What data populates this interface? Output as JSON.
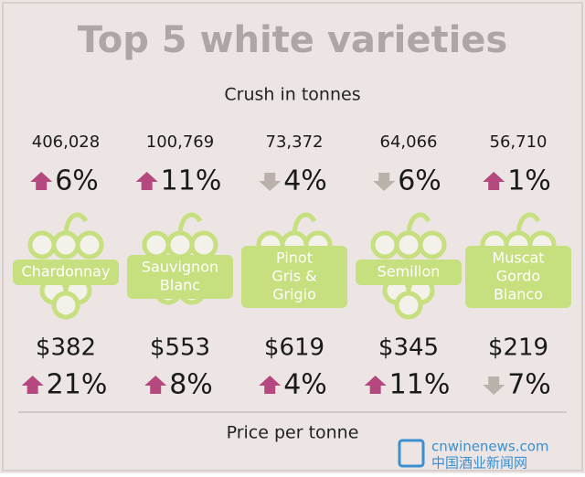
{
  "header": {
    "title": "Top 5 white varieties",
    "subtitle": "Crush in tonnes"
  },
  "varieties": [
    {
      "crush": "406,028",
      "crush_change": {
        "direction": "up",
        "label": "6%"
      },
      "name_lines": [
        "Chardonnay"
      ],
      "price": "$382",
      "price_change": {
        "direction": "up",
        "label": "21%"
      }
    },
    {
      "crush": "100,769",
      "crush_change": {
        "direction": "up",
        "label": "11%"
      },
      "name_lines": [
        "Sauvignon",
        "Blanc"
      ],
      "price": "$553",
      "price_change": {
        "direction": "up",
        "label": "8%"
      }
    },
    {
      "crush": "73,372",
      "crush_change": {
        "direction": "down",
        "label": "4%"
      },
      "name_lines": [
        "Pinot",
        "Gris &",
        "Grigio"
      ],
      "price": "$619",
      "price_change": {
        "direction": "up",
        "label": "4%"
      }
    },
    {
      "crush": "64,066",
      "crush_change": {
        "direction": "down",
        "label": "6%"
      },
      "name_lines": [
        "Semillon"
      ],
      "price": "$345",
      "price_change": {
        "direction": "up",
        "label": "11%"
      }
    },
    {
      "crush": "56,710",
      "crush_change": {
        "direction": "up",
        "label": "1%"
      },
      "name_lines": [
        "Muscat",
        "Gordo",
        "Blanco"
      ],
      "price": "$219",
      "price_change": {
        "direction": "down",
        "label": "7%"
      }
    }
  ],
  "footer": {
    "label": "Price per tonne"
  },
  "watermark": {
    "site": "cnwinenews.com",
    "name": "中国酒业新闻网"
  }
}
